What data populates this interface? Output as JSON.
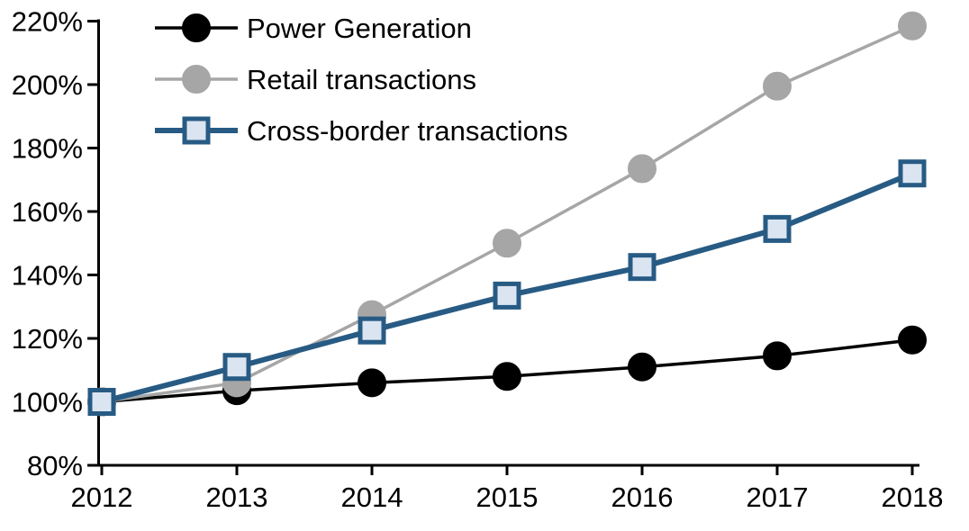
{
  "chart_data": {
    "type": "line",
    "title": "",
    "xlabel": "",
    "ylabel": "",
    "x": [
      2012,
      2013,
      2014,
      2015,
      2016,
      2017,
      2018
    ],
    "x_tick_labels": [
      "2012",
      "2013",
      "2014",
      "2015",
      "2016",
      "2017",
      "2018"
    ],
    "y_tick_labels": [
      "80%",
      "100%",
      "120%",
      "140%",
      "160%",
      "180%",
      "200%",
      "220%"
    ],
    "y_ticks": [
      80,
      100,
      120,
      140,
      160,
      180,
      200,
      220
    ],
    "ylim": [
      80,
      220
    ],
    "unit": "%",
    "grid": false,
    "legend_position": "top-left",
    "series": [
      {
        "name": "Power Generation",
        "marker": "circle",
        "color": "#000000",
        "marker_fill": "#000000",
        "line_width": 3.5,
        "values": [
          100,
          103.5,
          106,
          108,
          111,
          114.5,
          119.5
        ]
      },
      {
        "name": "Retail transactions",
        "marker": "circle",
        "color": "#A6A6A6",
        "marker_fill": "#A6A6A6",
        "line_width": 3.5,
        "values": [
          100,
          106,
          127.5,
          150,
          173.5,
          199.5,
          218.5
        ]
      },
      {
        "name": "Cross-border transactions",
        "marker": "square",
        "color": "#275B84",
        "marker_fill": "#DBE5F1",
        "line_width": 6,
        "values": [
          100,
          111,
          122.5,
          133.5,
          142.5,
          154.5,
          172
        ]
      }
    ]
  },
  "colors": {
    "axis": "#000000",
    "background": "#FFFFFF",
    "power_generation": "#000000",
    "retail_transactions": "#A6A6A6",
    "cross_border_line": "#275B84",
    "cross_border_marker_fill": "#DBE5F1"
  }
}
